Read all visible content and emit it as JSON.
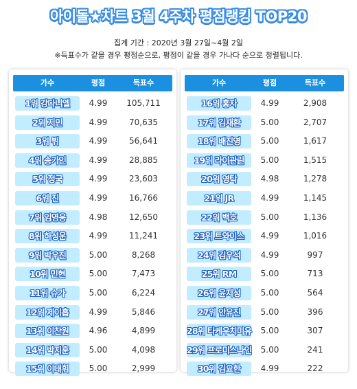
{
  "title": "아이돌★차트 3월 4주차 평점랭킹 TOP20",
  "period": "집계 기간 : 2020년 3월 27일~4월 2일",
  "note": "※득표수가 같을 경우 평점순으로, 평점이 같을 경우 가나다 순으로 정렬됩니다.",
  "columns": {
    "name": "가수",
    "score": "평점",
    "votes": "득표수"
  },
  "left_rows": [
    {
      "name": "1위 강다니엘",
      "score": "4.99",
      "votes": "105,711"
    },
    {
      "name": "2위 지민",
      "score": "4.99",
      "votes": "70,635"
    },
    {
      "name": "3위 뷔",
      "score": "4.99",
      "votes": "56,641"
    },
    {
      "name": "4위 송가인",
      "score": "4.99",
      "votes": "28,885"
    },
    {
      "name": "5위 정국",
      "score": "4.99",
      "votes": "23,603"
    },
    {
      "name": "6위 진",
      "score": "4.99",
      "votes": "16,766"
    },
    {
      "name": "7위 임영웅",
      "score": "4.98",
      "votes": "12,650"
    },
    {
      "name": "8위 하성운",
      "score": "4.99",
      "votes": "11,241"
    },
    {
      "name": "9위 박우진",
      "score": "5.00",
      "votes": "8,268"
    },
    {
      "name": "10위 민현",
      "score": "5.00",
      "votes": "7,473"
    },
    {
      "name": "11위 슈가",
      "score": "5.00",
      "votes": "6,224"
    },
    {
      "name": "12위 제이홉",
      "score": "4.99",
      "votes": "5,846"
    },
    {
      "name": "13위 이찬원",
      "score": "4.96",
      "votes": "4,899"
    },
    {
      "name": "14위 박지훈",
      "score": "5.00",
      "votes": "4,098"
    },
    {
      "name": "15위 이대휘",
      "score": "5.00",
      "votes": "2,999"
    }
  ],
  "right_rows": [
    {
      "name": "16위 홍자",
      "score": "4.99",
      "votes": "2,908"
    },
    {
      "name": "17위 김재환",
      "score": "5.00",
      "votes": "2,707"
    },
    {
      "name": "18위 배진영",
      "score": "5.00",
      "votes": "1,617"
    },
    {
      "name": "19위 라이관린",
      "score": "5.00",
      "votes": "1,515"
    },
    {
      "name": "20위 영탁",
      "score": "4.98",
      "votes": "1,278"
    },
    {
      "name": "21위 JR",
      "score": "4.99",
      "votes": "1,145"
    },
    {
      "name": "22위 백호",
      "score": "5.00",
      "votes": "1,136"
    },
    {
      "name": "23위 트와이스",
      "score": "4.99",
      "votes": "1,016"
    },
    {
      "name": "24위 김우석",
      "score": "4.99",
      "votes": "997"
    },
    {
      "name": "25위 RM",
      "score": "5.00",
      "votes": "713"
    },
    {
      "name": "26위 윤지성",
      "score": "5.00",
      "votes": "564"
    },
    {
      "name": "27위 안유진",
      "score": "5.00",
      "votes": "396"
    },
    {
      "name": "28위 타케우치미유",
      "score": "5.00",
      "votes": "307"
    },
    {
      "name": "29위 프로미스나인",
      "score": "5.00",
      "votes": "241"
    },
    {
      "name": "30위 김요한",
      "score": "4.99",
      "votes": "222"
    }
  ],
  "colors": {
    "header": "#1b8fe0",
    "name_cell": "#c2ecff",
    "name_outline": "#1a5fc4"
  }
}
